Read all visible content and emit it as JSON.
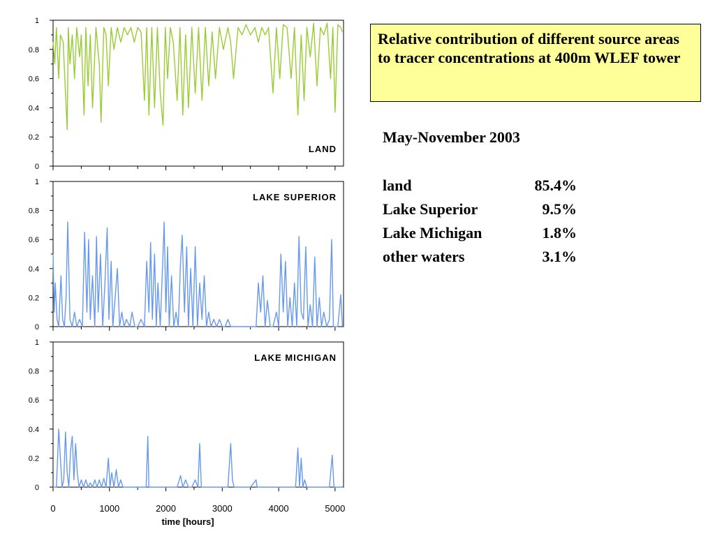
{
  "title": "Relative contribution of different source areas to tracer concentrations at 400m WLEF tower",
  "period": "May-November 2003",
  "contributions": [
    {
      "label": "land",
      "value": "85.4%"
    },
    {
      "label": "Lake Superior",
      "value": "9.5%"
    },
    {
      "label": "Lake Michigan",
      "value": "1.8%"
    },
    {
      "label": "other waters",
      "value": "3.1%"
    }
  ],
  "chart_data": [
    {
      "type": "line",
      "title": "LAND",
      "xlabel": "",
      "ylabel": "",
      "xlim": [
        0,
        5150
      ],
      "ylim": [
        0,
        1
      ],
      "yticks": [
        "0",
        "0.2",
        "0.4",
        "0.6",
        "0.8",
        "1"
      ],
      "color": "#99cc33",
      "x": [
        0,
        30,
        60,
        100,
        130,
        180,
        250,
        270,
        300,
        340,
        380,
        420,
        470,
        500,
        550,
        580,
        620,
        660,
        700,
        760,
        820,
        850,
        900,
        940,
        980,
        1030,
        1080,
        1140,
        1200,
        1260,
        1320,
        1380,
        1440,
        1500,
        1560,
        1620,
        1660,
        1700,
        1750,
        1800,
        1850,
        1900,
        1950,
        1990,
        2030,
        2080,
        2130,
        2200,
        2250,
        2300,
        2350,
        2400,
        2460,
        2520,
        2580,
        2640,
        2700,
        2760,
        2820,
        2880,
        2950,
        3020,
        3100,
        3150,
        3200,
        3280,
        3350,
        3420,
        3500,
        3580,
        3640,
        3700,
        3760,
        3820,
        3900,
        3960,
        4020,
        4080,
        4150,
        4220,
        4280,
        4340,
        4400,
        4450,
        4500,
        4560,
        4620,
        4680,
        4740,
        4800,
        4860,
        4920,
        4960,
        5000,
        5050,
        5100,
        5130
      ],
      "y": [
        0.85,
        0.7,
        0.95,
        0.6,
        0.9,
        0.85,
        0.25,
        0.95,
        0.7,
        0.9,
        0.6,
        0.95,
        0.75,
        0.9,
        0.35,
        0.95,
        0.55,
        0.9,
        0.4,
        0.95,
        0.7,
        0.3,
        0.95,
        0.9,
        0.55,
        0.95,
        0.8,
        0.95,
        0.85,
        0.95,
        0.9,
        0.95,
        0.85,
        0.95,
        0.92,
        0.45,
        0.95,
        0.35,
        0.95,
        0.4,
        0.95,
        0.5,
        0.28,
        0.95,
        0.6,
        0.95,
        0.85,
        0.45,
        0.95,
        0.35,
        0.9,
        0.4,
        0.95,
        0.5,
        0.95,
        0.45,
        0.95,
        0.55,
        0.92,
        0.6,
        0.95,
        0.8,
        0.95,
        0.85,
        0.6,
        0.95,
        0.9,
        0.97,
        0.9,
        0.95,
        0.85,
        0.95,
        0.9,
        0.95,
        0.5,
        0.95,
        0.6,
        0.97,
        0.95,
        0.6,
        0.95,
        0.35,
        0.9,
        0.45,
        0.95,
        0.75,
        0.98,
        0.55,
        0.95,
        0.9,
        0.98,
        0.6,
        0.95,
        0.37,
        0.97,
        0.95,
        0.92
      ]
    },
    {
      "type": "line",
      "title": "LAKE SUPERIOR",
      "xlabel": "",
      "ylabel": "",
      "xlim": [
        0,
        5150
      ],
      "ylim": [
        0,
        1
      ],
      "yticks": [
        "0",
        "0.2",
        "0.4",
        "0.6",
        "0.8",
        "1"
      ],
      "color": "#6699ee",
      "x": [
        0,
        20,
        40,
        70,
        100,
        140,
        170,
        200,
        230,
        260,
        300,
        340,
        380,
        420,
        470,
        520,
        560,
        600,
        630,
        660,
        700,
        740,
        770,
        800,
        840,
        880,
        920,
        960,
        990,
        1030,
        1060,
        1100,
        1140,
        1180,
        1220,
        1260,
        1300,
        1360,
        1400,
        1450,
        1500,
        1560,
        1620,
        1660,
        1700,
        1730,
        1760,
        1800,
        1830,
        1860,
        1900,
        1940,
        1970,
        2000,
        2030,
        2060,
        2100,
        2140,
        2180,
        2220,
        2260,
        2290,
        2330,
        2370,
        2400,
        2440,
        2480,
        2520,
        2560,
        2600,
        2640,
        2680,
        2720,
        2760,
        2800,
        2850,
        2900,
        2950,
        3000,
        3050,
        3100,
        3150,
        3200,
        3300,
        3400,
        3500,
        3550,
        3600,
        3640,
        3680,
        3720,
        3760,
        3800,
        3850,
        3900,
        3960,
        4000,
        4040,
        4080,
        4120,
        4160,
        4200,
        4240,
        4280,
        4320,
        4360,
        4400,
        4440,
        4480,
        4520,
        4560,
        4600,
        4640,
        4680,
        4720,
        4760,
        4800,
        4850,
        4900,
        4940,
        4970,
        5000,
        5050,
        5100,
        5130
      ],
      "y": [
        0.5,
        0.1,
        0.3,
        0.05,
        0.0,
        0.35,
        0.05,
        0.0,
        0.2,
        0.72,
        0.05,
        0.0,
        0.1,
        0.0,
        0.05,
        0.0,
        0.65,
        0.1,
        0.6,
        0.05,
        0.35,
        0.0,
        0.62,
        0.1,
        0.5,
        0.0,
        0.3,
        0.68,
        0.05,
        0.45,
        0.0,
        0.2,
        0.4,
        0.0,
        0.1,
        0.0,
        0.05,
        0.0,
        0.1,
        0.0,
        0.0,
        0.05,
        0.0,
        0.45,
        0.1,
        0.58,
        0.05,
        0.5,
        0.0,
        0.3,
        0.0,
        0.4,
        0.72,
        0.1,
        0.55,
        0.0,
        0.35,
        0.0,
        0.1,
        0.0,
        0.45,
        0.63,
        0.1,
        0.55,
        0.0,
        0.4,
        0.0,
        0.55,
        0.0,
        0.3,
        0.05,
        0.35,
        0.0,
        0.1,
        0.0,
        0.05,
        0.0,
        0.05,
        0.0,
        0.0,
        0.05,
        0.0,
        0.0,
        0.0,
        0.0,
        0.0,
        0.0,
        0.0,
        0.3,
        0.1,
        0.35,
        0.0,
        0.18,
        0.0,
        0.0,
        0.1,
        0.0,
        0.5,
        0.1,
        0.45,
        0.0,
        0.2,
        0.0,
        0.3,
        0.0,
        0.62,
        0.1,
        0.05,
        0.55,
        0.0,
        0.15,
        0.0,
        0.48,
        0.0,
        0.2,
        0.0,
        0.1,
        0.0,
        0.05,
        0.6,
        0.0,
        0.0,
        0.0,
        0.22,
        0.0
      ],
      "note": ""
    },
    {
      "type": "line",
      "title": "LAKE MICHIGAN",
      "xlabel": "time [hours]",
      "ylabel": "",
      "xlim": [
        0,
        5150
      ],
      "ylim": [
        0,
        1
      ],
      "xticks": [
        "0",
        "1000",
        "2000",
        "3000",
        "4000",
        "5000"
      ],
      "yticks": [
        "0",
        "0.2",
        "0.4",
        "0.6",
        "0.8",
        "1"
      ],
      "color": "#6699ee",
      "x": [
        0,
        60,
        100,
        130,
        160,
        190,
        220,
        250,
        280,
        310,
        340,
        370,
        400,
        430,
        460,
        500,
        540,
        580,
        620,
        660,
        700,
        740,
        780,
        820,
        860,
        900,
        940,
        980,
        1010,
        1040,
        1080,
        1120,
        1160,
        1200,
        1240,
        1280,
        1400,
        1500,
        1600,
        1650,
        1680,
        1700,
        1720,
        1800,
        1900,
        2000,
        2100,
        2200,
        2260,
        2300,
        2350,
        2400,
        2460,
        2520,
        2570,
        2600,
        2630,
        2700,
        2800,
        2900,
        3000,
        3100,
        3150,
        3180,
        3210,
        3300,
        3400,
        3500,
        3600,
        3620,
        3700,
        3800,
        3900,
        4000,
        4100,
        4200,
        4300,
        4340,
        4370,
        4400,
        4430,
        4460,
        4500,
        4530,
        4600,
        4700,
        4800,
        4900,
        4950,
        4980,
        5020,
        5100,
        5140
      ],
      "y": [
        0.0,
        0.0,
        0.4,
        0.2,
        0.0,
        0.05,
        0.38,
        0.1,
        0.0,
        0.25,
        0.35,
        0.05,
        0.3,
        0.1,
        0.0,
        0.05,
        0.0,
        0.05,
        0.0,
        0.03,
        0.0,
        0.05,
        0.0,
        0.05,
        0.0,
        0.06,
        0.0,
        0.2,
        0.0,
        0.1,
        0.0,
        0.12,
        0.0,
        0.05,
        0.0,
        0.0,
        0.0,
        0.0,
        0.0,
        0.0,
        0.35,
        0.0,
        0.0,
        0.0,
        0.0,
        0.0,
        0.0,
        0.0,
        0.08,
        0.0,
        0.05,
        0.0,
        0.0,
        0.05,
        0.0,
        0.3,
        0.0,
        0.0,
        0.0,
        0.0,
        0.0,
        0.0,
        0.3,
        0.05,
        0.0,
        0.0,
        0.0,
        0.0,
        0.05,
        0.0,
        0.0,
        0.0,
        0.0,
        0.0,
        0.0,
        0.0,
        0.0,
        0.27,
        0.0,
        0.2,
        0.0,
        0.05,
        0.0,
        0.0,
        0.0,
        0.0,
        0.0,
        0.0,
        0.22,
        0.0,
        0.0,
        0.0,
        0.0
      ]
    }
  ]
}
